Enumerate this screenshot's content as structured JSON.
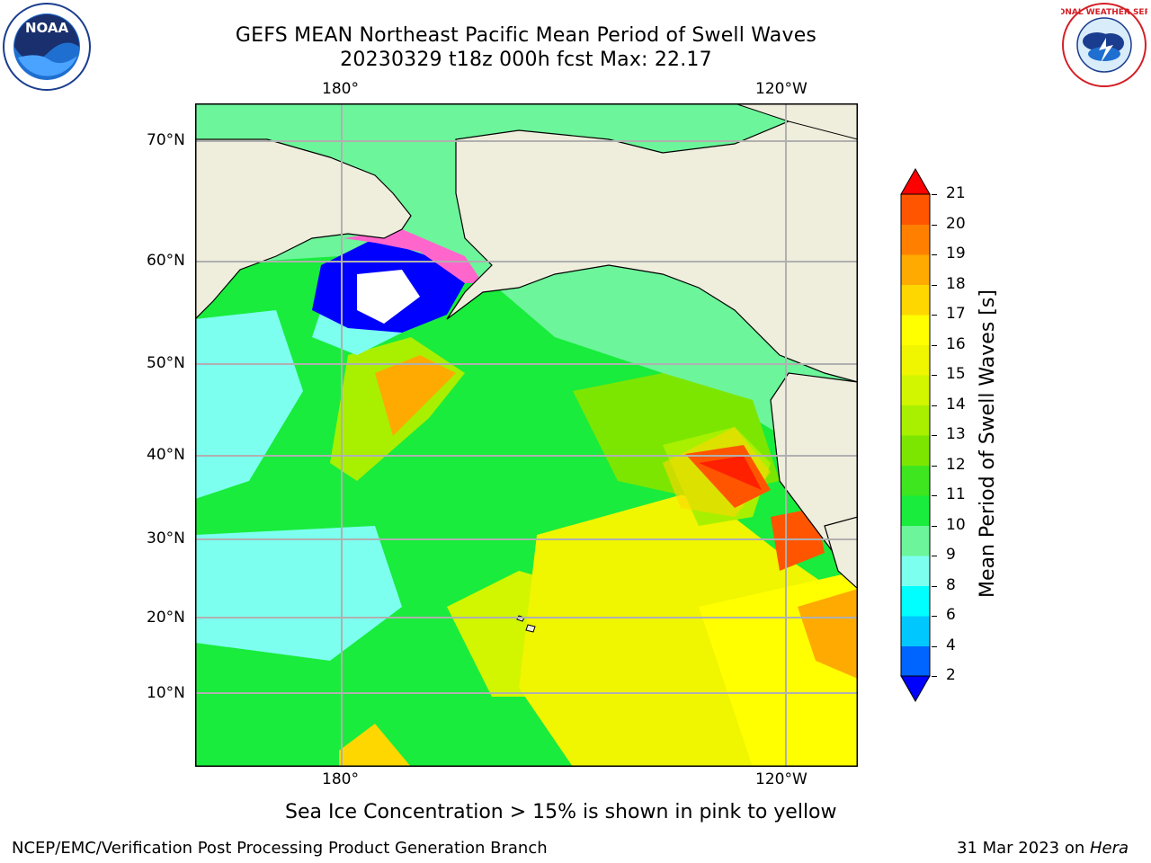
{
  "title": {
    "line1": "GEFS MEAN Northeast Pacific Mean Period of Swell Waves",
    "line2": "20230329 t18z 000h fcst   Max: 22.17"
  },
  "map": {
    "lon_labels_top": [
      "180°",
      "120°W"
    ],
    "lon_labels_bottom": [
      "180°",
      "120°W"
    ],
    "lat_labels": [
      "70°N",
      "60°N",
      "50°N",
      "40°N",
      "30°N",
      "20°N",
      "10°N"
    ]
  },
  "colorbar": {
    "label": "Mean Period of Swell Waves [s]",
    "ticks": [
      "21",
      "20",
      "19",
      "18",
      "17",
      "16",
      "15",
      "14",
      "13",
      "12",
      "11",
      "10",
      "9",
      "8",
      "6",
      "4",
      "2"
    ],
    "colors": [
      "#0000ff",
      "#0064ff",
      "#00c8ff",
      "#00ffff",
      "#7dfff0",
      "#6cf59a",
      "#19ec3c",
      "#3de61e",
      "#7de600",
      "#a8f000",
      "#d2f500",
      "#f0f500",
      "#ffff00",
      "#ffd700",
      "#ffaa00",
      "#ff8000",
      "#ff5500",
      "#ff2000",
      "#ff0000"
    ]
  },
  "footnote": "Sea Ice Concentration > 15% is shown in pink to yellow",
  "credit_left": "NCEP/EMC/Verification Post Processing Product Generation Branch",
  "credit_right_date": "31 Mar 2023 on",
  "credit_right_machine": "Hera",
  "logos": {
    "noaa": {
      "text": "NOAA",
      "ring_text": "NATIONAL OCEANIC AND ATMOSPHERIC ADMINISTRATION · U.S. DEPARTMENT OF COMMERCE"
    },
    "nws": {
      "ring_text": "NATIONAL WEATHER SERVICE"
    }
  }
}
